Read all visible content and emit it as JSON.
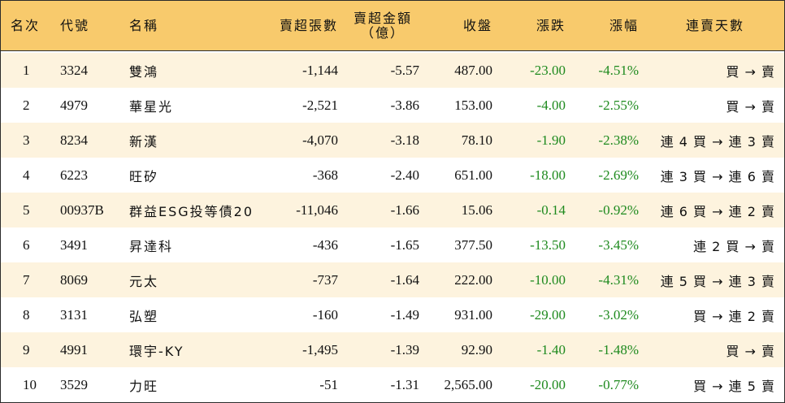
{
  "headers": {
    "rank": "名次",
    "code": "代號",
    "name": "名稱",
    "net_sell_lots": "賣超張數",
    "net_sell_amount_line1": "賣超金額",
    "net_sell_amount_line2": "（億）",
    "close": "收盤",
    "change": "漲跌",
    "change_pct": "漲幅",
    "consecutive_days": "連賣天數"
  },
  "colors": {
    "header_bg": "#f8ca6c",
    "odd_row_bg": "#fdf3de",
    "negative_change": "#1e8a1e"
  },
  "rows": [
    {
      "rank": "1",
      "code": "3324",
      "name": "雙鴻",
      "lots": "-1,144",
      "amount": "-5.57",
      "close": "487.00",
      "change": "-23.00",
      "pct": "-4.51%",
      "days": "買 → 賣"
    },
    {
      "rank": "2",
      "code": "4979",
      "name": "華星光",
      "lots": "-2,521",
      "amount": "-3.86",
      "close": "153.00",
      "change": "-4.00",
      "pct": "-2.55%",
      "days": "買 → 賣"
    },
    {
      "rank": "3",
      "code": "8234",
      "name": "新漢",
      "lots": "-4,070",
      "amount": "-3.18",
      "close": "78.10",
      "change": "-1.90",
      "pct": "-2.38%",
      "days": "連 4 買 → 連 3 賣"
    },
    {
      "rank": "4",
      "code": "6223",
      "name": "旺矽",
      "lots": "-368",
      "amount": "-2.40",
      "close": "651.00",
      "change": "-18.00",
      "pct": "-2.69%",
      "days": "連 3 買 → 連 6 賣"
    },
    {
      "rank": "5",
      "code": "00937B",
      "name": "群益ESG投等債20",
      "lots": "-11,046",
      "amount": "-1.66",
      "close": "15.06",
      "change": "-0.14",
      "pct": "-0.92%",
      "days": "連 6 買 → 連 2 賣"
    },
    {
      "rank": "6",
      "code": "3491",
      "name": "昇達科",
      "lots": "-436",
      "amount": "-1.65",
      "close": "377.50",
      "change": "-13.50",
      "pct": "-3.45%",
      "days": "連 2 買 → 賣"
    },
    {
      "rank": "7",
      "code": "8069",
      "name": "元太",
      "lots": "-737",
      "amount": "-1.64",
      "close": "222.00",
      "change": "-10.00",
      "pct": "-4.31%",
      "days": "連 5 買 → 連 3 賣"
    },
    {
      "rank": "8",
      "code": "3131",
      "name": "弘塑",
      "lots": "-160",
      "amount": "-1.49",
      "close": "931.00",
      "change": "-29.00",
      "pct": "-3.02%",
      "days": "買 → 連 2 賣"
    },
    {
      "rank": "9",
      "code": "4991",
      "name": "環宇-KY",
      "lots": "-1,495",
      "amount": "-1.39",
      "close": "92.90",
      "change": "-1.40",
      "pct": "-1.48%",
      "days": "買 → 賣"
    },
    {
      "rank": "10",
      "code": "3529",
      "name": "力旺",
      "lots": "-51",
      "amount": "-1.31",
      "close": "2,565.00",
      "change": "-20.00",
      "pct": "-0.77%",
      "days": "買 → 連 5 賣"
    }
  ]
}
